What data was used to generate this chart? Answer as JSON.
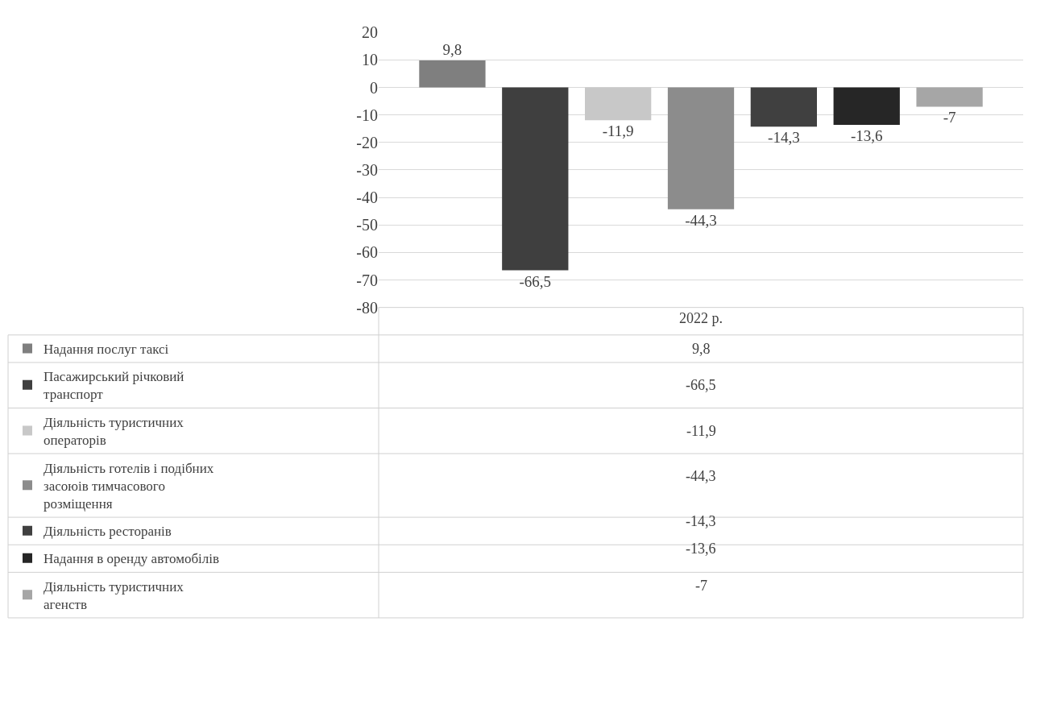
{
  "chart_data": {
    "type": "bar",
    "categories": [
      "2022 р."
    ],
    "series": [
      {
        "name": "Надання послуг таксі",
        "color": "#7f7f7f",
        "values": [
          9.8
        ],
        "value_labels": [
          "9,8"
        ]
      },
      {
        "name": "Пасажирський річковий транспорт",
        "color": "#3f3f3f",
        "values": [
          -66.5
        ],
        "value_labels": [
          "-66,5"
        ]
      },
      {
        "name": "Діяльність туристичних операторів",
        "color": "#c8c8c8",
        "values": [
          -11.9
        ],
        "value_labels": [
          "-11,9"
        ]
      },
      {
        "name": "Діяльність готелів і подібних засоюів тимчасового розміщення",
        "color": "#8c8c8c",
        "values": [
          -44.3
        ],
        "value_labels": [
          "-44,3"
        ]
      },
      {
        "name": "Діяльність ресторанів",
        "color": "#404040",
        "values": [
          -14.3
        ],
        "value_labels": [
          "-14,3"
        ]
      },
      {
        "name": "Надання в оренду автомобілів",
        "color": "#262626",
        "values": [
          -13.6
        ],
        "value_labels": [
          "-13,6"
        ]
      },
      {
        "name": "Діяльність туристичних агенств",
        "color": "#a6a6a6",
        "values": [
          -7
        ],
        "value_labels": [
          "-7"
        ]
      }
    ],
    "ylim": [
      -80,
      20
    ],
    "yticks": [
      -80,
      -70,
      -60,
      -50,
      -40,
      -30,
      -20,
      -10,
      0,
      10,
      20
    ],
    "grid": "y",
    "legend": "bottom left"
  }
}
